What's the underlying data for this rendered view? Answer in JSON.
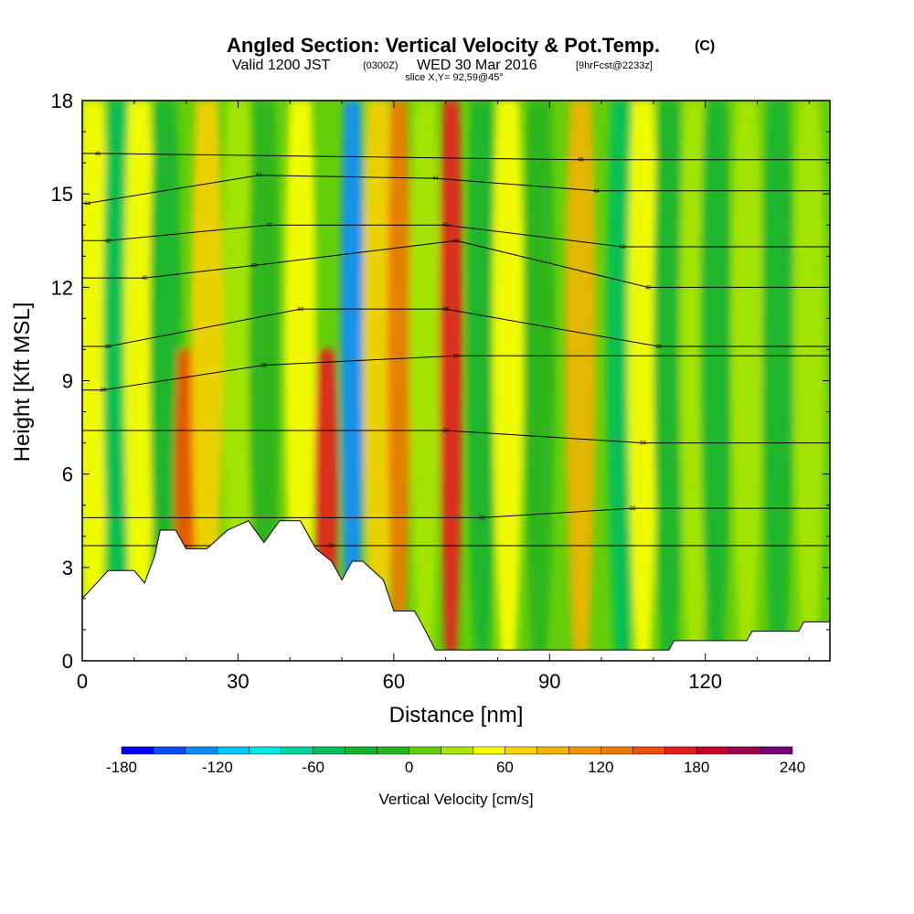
{
  "chart_data": {
    "type": "heatmap",
    "title": "Angled Section: Vertical Velocity & Pot.Temp.",
    "title_unit": "(C)",
    "subtitle_prefix": "Valid 1200 JST",
    "subtitle_z": "(0300Z)",
    "subtitle_date": "WED 30 Mar 2016",
    "subtitle_fcst": "[9hrFcst@2233z]",
    "subtitle_slice": "slice X,Y= 92,59@45°",
    "xlabel": "Distance [nm]",
    "ylabel": "Height [Kft MSL]",
    "xlim": [
      0,
      144
    ],
    "ylim": [
      0,
      18
    ],
    "xticks": [
      "0",
      "30",
      "60",
      "90",
      "120"
    ],
    "xtick_values": [
      0,
      30,
      60,
      90,
      120
    ],
    "yticks": [
      "0",
      "3",
      "6",
      "9",
      "12",
      "15",
      "18"
    ],
    "ytick_values": [
      0,
      3,
      6,
      9,
      12,
      15,
      18
    ],
    "colorbar": {
      "label": "Vertical Velocity [cm/s]",
      "tick_labels": [
        "-180",
        "-120",
        "-60",
        "0",
        "60",
        "120",
        "180",
        "240"
      ],
      "tick_values": [
        -180,
        -120,
        -60,
        0,
        60,
        120,
        180,
        240
      ],
      "levels": [
        -180,
        -160,
        -140,
        -120,
        -100,
        -80,
        -60,
        -40,
        -20,
        0,
        20,
        40,
        60,
        80,
        100,
        120,
        140,
        160,
        180,
        200,
        220,
        240
      ],
      "colors": [
        "#0000ff",
        "#0a4cff",
        "#0b8cff",
        "#00c8ff",
        "#00e6e6",
        "#00d2a0",
        "#00be5a",
        "#14b432",
        "#28b41e",
        "#64cd0a",
        "#aae600",
        "#ffff00",
        "#fad200",
        "#f0b400",
        "#f09600",
        "#f07800",
        "#f05000",
        "#e61e1e",
        "#c80028",
        "#a00050",
        "#780078"
      ]
    },
    "terrain": [
      [
        0,
        2.0
      ],
      [
        5,
        2.9
      ],
      [
        10,
        2.9
      ],
      [
        12,
        2.5
      ],
      [
        14,
        3.4
      ],
      [
        15,
        4.2
      ],
      [
        18,
        4.2
      ],
      [
        20,
        3.6
      ],
      [
        24,
        3.6
      ],
      [
        28,
        4.2
      ],
      [
        32,
        4.5
      ],
      [
        35,
        3.8
      ],
      [
        38,
        4.5
      ],
      [
        42,
        4.5
      ],
      [
        45,
        3.6
      ],
      [
        48,
        3.2
      ],
      [
        50,
        2.6
      ],
      [
        52,
        3.2
      ],
      [
        54,
        3.2
      ],
      [
        58,
        2.6
      ],
      [
        60,
        1.6
      ],
      [
        64,
        1.6
      ],
      [
        66,
        1.0
      ],
      [
        68,
        0.35
      ],
      [
        80,
        0.35
      ],
      [
        100,
        0.35
      ],
      [
        113,
        0.35
      ],
      [
        114,
        0.65
      ],
      [
        128,
        0.65
      ],
      [
        129,
        0.95
      ],
      [
        138,
        0.95
      ],
      [
        139,
        1.25
      ],
      [
        144,
        1.25
      ]
    ],
    "velocity_features": [
      {
        "x": 2,
        "z_top": 18,
        "value": 40
      },
      {
        "x": 7,
        "z_top": 18,
        "value": -60
      },
      {
        "x": 11,
        "z_top": 18,
        "value": 40
      },
      {
        "x": 16,
        "z_top": 18,
        "value": -40
      },
      {
        "x": 20,
        "z_top": 10,
        "value": 140
      },
      {
        "x": 24,
        "z_top": 18,
        "value": 60
      },
      {
        "x": 30,
        "z_top": 18,
        "value": 20
      },
      {
        "x": 35,
        "z_top": 18,
        "value": -20
      },
      {
        "x": 42,
        "z_top": 18,
        "value": 40
      },
      {
        "x": 47,
        "z_top": 10,
        "value": 160
      },
      {
        "x": 52,
        "z_top": 18,
        "value": -140
      },
      {
        "x": 57,
        "z_top": 18,
        "value": 60
      },
      {
        "x": 61,
        "z_top": 18,
        "value": 120
      },
      {
        "x": 66,
        "z_top": 18,
        "value": 20
      },
      {
        "x": 71,
        "z_top": 18,
        "value": 160
      },
      {
        "x": 77,
        "z_top": 18,
        "value": -40
      },
      {
        "x": 82,
        "z_top": 18,
        "value": 40
      },
      {
        "x": 88,
        "z_top": 18,
        "value": -20
      },
      {
        "x": 96,
        "z_top": 18,
        "value": 80
      },
      {
        "x": 104,
        "z_top": 18,
        "value": -60
      },
      {
        "x": 108,
        "z_top": 18,
        "value": 40
      },
      {
        "x": 113,
        "z_top": 18,
        "value": -40
      },
      {
        "x": 118,
        "z_top": 18,
        "value": 20
      },
      {
        "x": 122,
        "z_top": 18,
        "value": -40
      },
      {
        "x": 128,
        "z_top": 18,
        "value": 20
      },
      {
        "x": 134,
        "z_top": 18,
        "value": -40
      },
      {
        "x": 140,
        "z_top": 18,
        "value": 20
      }
    ],
    "isentrope_labels": [
      {
        "x": 3,
        "z": 16.3,
        "text": "46"
      },
      {
        "x": 1,
        "z": 14.7,
        "text": "44"
      },
      {
        "x": 5,
        "z": 13.5,
        "text": "42"
      },
      {
        "x": 12,
        "z": 12.3,
        "text": "40"
      },
      {
        "x": 5,
        "z": 10.1,
        "text": "38"
      },
      {
        "x": 4,
        "z": 8.7,
        "text": "36"
      },
      {
        "x": 34,
        "z": 15.6,
        "text": "44"
      },
      {
        "x": 36,
        "z": 14.0,
        "text": "42"
      },
      {
        "x": 33,
        "z": 12.7,
        "text": "40"
      },
      {
        "x": 42,
        "z": 11.3,
        "text": "38"
      },
      {
        "x": 35,
        "z": 9.5,
        "text": "36"
      },
      {
        "x": 68,
        "z": 15.5,
        "text": "44"
      },
      {
        "x": 70,
        "z": 14.0,
        "text": "42"
      },
      {
        "x": 72,
        "z": 13.5,
        "text": "40"
      },
      {
        "x": 70,
        "z": 11.3,
        "text": "38"
      },
      {
        "x": 72,
        "z": 9.8,
        "text": "36"
      },
      {
        "x": 70,
        "z": 7.4,
        "text": "34"
      },
      {
        "x": 77,
        "z": 4.6,
        "text": "32"
      },
      {
        "x": 48,
        "z": 3.7,
        "text": "30"
      },
      {
        "x": 96,
        "z": 16.1,
        "text": "46"
      },
      {
        "x": 99,
        "z": 15.1,
        "text": "44"
      },
      {
        "x": 104,
        "z": 13.3,
        "text": "42"
      },
      {
        "x": 109,
        "z": 12.0,
        "text": "40"
      },
      {
        "x": 111,
        "z": 10.1,
        "text": "38"
      },
      {
        "x": 108,
        "z": 7.0,
        "text": "34"
      },
      {
        "x": 106,
        "z": 4.9,
        "text": "32"
      }
    ]
  }
}
